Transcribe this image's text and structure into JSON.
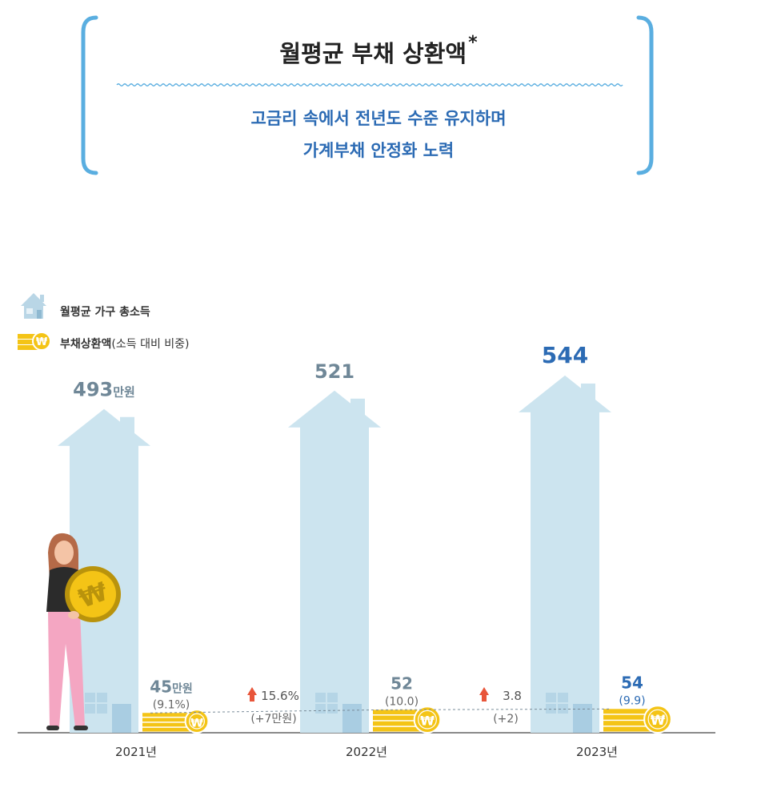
{
  "header": {
    "title": "월평균 부채 상환액",
    "title_mark": "*",
    "subtitle_line1": "고금리 속에서 전년도 수준 유지하며",
    "subtitle_line2": "가계부채 안정화 노력"
  },
  "legend": {
    "income": "월평균 가구 총소득",
    "debt": "부채상환액",
    "debt_note": "(소득 대비 비중)"
  },
  "colors": {
    "house": "#cce4ef",
    "coin": "#f4c416",
    "accent_blue": "#2c6bb4",
    "gray_value": "#6f8797",
    "arrow_up": "#e8553a"
  },
  "chart_data": {
    "type": "bar",
    "categories": [
      "2021년",
      "2022년",
      "2023년"
    ],
    "series": [
      {
        "name": "월평균 가구 총소득",
        "values": [
          493,
          521,
          544
        ]
      },
      {
        "name": "부채상환액",
        "values": [
          45,
          52,
          54
        ]
      }
    ],
    "income_labels": [
      "493",
      "521",
      "544"
    ],
    "income_unit": "만원",
    "debt_labels": [
      "45",
      "52",
      "54"
    ],
    "debt_unit": "만원",
    "ratio_labels": [
      "(9.1%)",
      "(10.0)",
      "(9.9)"
    ],
    "changes": [
      {
        "pct": "15.6%",
        "amount": "(+7만원)"
      },
      {
        "pct": "3.8",
        "amount": "(+2)"
      }
    ]
  }
}
